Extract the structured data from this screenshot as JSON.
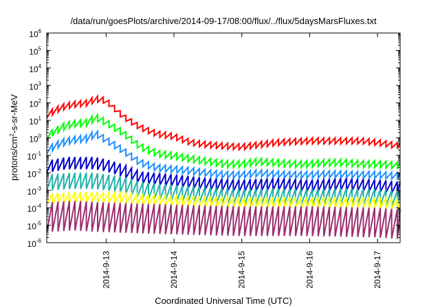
{
  "chart_data": {
    "type": "line",
    "title": "/data/run/goesPlots/archive/2014-09-17/08:00/flux/../flux/5daysMarsFluxes.txt",
    "xlabel": "Coordinated Universal Time (UTC)",
    "ylabel_base": "protons/cm",
    "ylabel_sup": "2",
    "ylabel_rest": "-s-sr-MeV",
    "y_scale": "log",
    "ylim": [
      1e-06,
      1000000.0
    ],
    "y_ticks": [
      {
        "base": "10",
        "exp": "-6",
        "value": 1e-06
      },
      {
        "base": "10",
        "exp": "-5",
        "value": 1e-05
      },
      {
        "base": "10",
        "exp": "-4",
        "value": 0.0001
      },
      {
        "base": "10",
        "exp": "-3",
        "value": 0.001
      },
      {
        "base": "10",
        "exp": "-2",
        "value": 0.01
      },
      {
        "base": "10",
        "exp": "-1",
        "value": 0.1
      },
      {
        "base": "10",
        "exp": "0",
        "value": 1
      },
      {
        "base": "10",
        "exp": "1",
        "value": 10
      },
      {
        "base": "10",
        "exp": "2",
        "value": 100
      },
      {
        "base": "10",
        "exp": "3",
        "value": 1000
      },
      {
        "base": "10",
        "exp": "4",
        "value": 10000
      },
      {
        "base": "10",
        "exp": "5",
        "value": 100000
      },
      {
        "base": "10",
        "exp": "6",
        "value": 1000000
      }
    ],
    "xlim": [
      "2014-09-12T03:00",
      "2014-09-17T08:00"
    ],
    "x_ticks": [
      {
        "label": "2014-9-13",
        "value": "2014-09-13T00:00"
      },
      {
        "label": "2014-9-14",
        "value": "2014-09-14T00:00"
      },
      {
        "label": "2014-9-15",
        "value": "2014-09-15T00:00"
      },
      {
        "label": "2014-9-16",
        "value": "2014-09-16T00:00"
      },
      {
        "label": "2014-9-17",
        "value": "2014-09-17T00:00"
      }
    ],
    "grid": false,
    "legend": "none",
    "sawtooth_period_hours": 2,
    "series": [
      {
        "color": "#ff0000",
        "envelope": [
          [
            "2014-09-12T03:00",
            30
          ],
          [
            "2014-09-12T08:00",
            80
          ],
          [
            "2014-09-12T12:00",
            120
          ],
          [
            "2014-09-12T18:00",
            150
          ],
          [
            "2014-09-12T20:00",
            260
          ],
          [
            "2014-09-13T00:00",
            200
          ],
          [
            "2014-09-13T06:00",
            25
          ],
          [
            "2014-09-13T12:00",
            6
          ],
          [
            "2014-09-13T18:00",
            2.5
          ],
          [
            "2014-09-14T00:00",
            1.8
          ],
          [
            "2014-09-14T06:00",
            0.8
          ],
          [
            "2014-09-14T12:00",
            0.6
          ],
          [
            "2014-09-14T18:00",
            0.5
          ],
          [
            "2014-09-15T00:00",
            0.45
          ],
          [
            "2014-09-15T06:00",
            0.6
          ],
          [
            "2014-09-15T12:00",
            0.8
          ],
          [
            "2014-09-15T18:00",
            0.9
          ],
          [
            "2014-09-16T00:00",
            1.0
          ],
          [
            "2014-09-16T06:00",
            1.0
          ],
          [
            "2014-09-16T12:00",
            1.0
          ],
          [
            "2014-09-16T18:00",
            1.0
          ],
          [
            "2014-09-17T00:00",
            0.8
          ],
          [
            "2014-09-17T08:00",
            0.5
          ]
        ],
        "drop": 0.45
      },
      {
        "color": "#00ff00",
        "envelope": [
          [
            "2014-09-12T03:00",
            2.0
          ],
          [
            "2014-09-12T08:00",
            6.0
          ],
          [
            "2014-09-12T12:00",
            10
          ],
          [
            "2014-09-12T18:00",
            12
          ],
          [
            "2014-09-12T20:00",
            25
          ],
          [
            "2014-09-13T00:00",
            12
          ],
          [
            "2014-09-13T06:00",
            3.0
          ],
          [
            "2014-09-13T12:00",
            0.5
          ],
          [
            "2014-09-13T18:00",
            0.2
          ],
          [
            "2014-09-14T00:00",
            0.15
          ],
          [
            "2014-09-14T06:00",
            0.1
          ],
          [
            "2014-09-14T12:00",
            0.07
          ],
          [
            "2014-09-14T18:00",
            0.05
          ],
          [
            "2014-09-15T00:00",
            0.05
          ],
          [
            "2014-09-15T06:00",
            0.07
          ],
          [
            "2014-09-15T12:00",
            0.06
          ],
          [
            "2014-09-15T18:00",
            0.05
          ],
          [
            "2014-09-16T00:00",
            0.05
          ],
          [
            "2014-09-16T06:00",
            0.06
          ],
          [
            "2014-09-16T12:00",
            0.06
          ],
          [
            "2014-09-16T18:00",
            0.05
          ],
          [
            "2014-09-17T00:00",
            0.05
          ],
          [
            "2014-09-17T08:00",
            0.04
          ]
        ],
        "drop": 0.4
      },
      {
        "color": "#1e90ff",
        "envelope": [
          [
            "2014-09-12T03:00",
            0.3
          ],
          [
            "2014-09-12T08:00",
            0.8
          ],
          [
            "2014-09-12T12:00",
            1.2
          ],
          [
            "2014-09-12T18:00",
            1.5
          ],
          [
            "2014-09-12T20:00",
            3.0
          ],
          [
            "2014-09-13T00:00",
            1.2
          ],
          [
            "2014-09-13T06:00",
            0.3
          ],
          [
            "2014-09-13T12:00",
            0.06
          ],
          [
            "2014-09-13T18:00",
            0.03
          ],
          [
            "2014-09-14T00:00",
            0.025
          ],
          [
            "2014-09-14T06:00",
            0.02
          ],
          [
            "2014-09-14T12:00",
            0.015
          ],
          [
            "2014-09-14T18:00",
            0.012
          ],
          [
            "2014-09-15T00:00",
            0.012
          ],
          [
            "2014-09-15T06:00",
            0.015
          ],
          [
            "2014-09-15T12:00",
            0.013
          ],
          [
            "2014-09-15T18:00",
            0.012
          ],
          [
            "2014-09-16T00:00",
            0.012
          ],
          [
            "2014-09-16T06:00",
            0.013
          ],
          [
            "2014-09-16T12:00",
            0.013
          ],
          [
            "2014-09-16T18:00",
            0.012
          ],
          [
            "2014-09-17T00:00",
            0.012
          ],
          [
            "2014-09-17T08:00",
            0.01
          ]
        ],
        "drop": 0.4
      },
      {
        "color": "#0000cd",
        "envelope": [
          [
            "2014-09-12T03:00",
            0.05
          ],
          [
            "2014-09-12T10:00",
            0.08
          ],
          [
            "2014-09-12T20:00",
            0.08
          ],
          [
            "2014-09-13T00:00",
            0.06
          ],
          [
            "2014-09-13T06:00",
            0.03
          ],
          [
            "2014-09-13T12:00",
            0.012
          ],
          [
            "2014-09-14T00:00",
            0.008
          ],
          [
            "2014-09-14T12:00",
            0.005
          ],
          [
            "2014-09-15T00:00",
            0.004
          ],
          [
            "2014-09-15T12:00",
            0.005
          ],
          [
            "2014-09-16T00:00",
            0.004
          ],
          [
            "2014-09-16T12:00",
            0.005
          ],
          [
            "2014-09-17T00:00",
            0.004
          ],
          [
            "2014-09-17T08:00",
            0.003
          ]
        ],
        "drop": 0.2
      },
      {
        "color": "#20b2aa",
        "envelope": [
          [
            "2014-09-12T03:00",
            0.008
          ],
          [
            "2014-09-12T12:00",
            0.01
          ],
          [
            "2014-09-12T20:00",
            0.01
          ],
          [
            "2014-09-13T06:00",
            0.006
          ],
          [
            "2014-09-13T12:00",
            0.003
          ],
          [
            "2014-09-14T00:00",
            0.002
          ],
          [
            "2014-09-14T12:00",
            0.0015
          ],
          [
            "2014-09-15T00:00",
            0.0012
          ],
          [
            "2014-09-15T12:00",
            0.0013
          ],
          [
            "2014-09-16T00:00",
            0.0012
          ],
          [
            "2014-09-16T12:00",
            0.0013
          ],
          [
            "2014-09-17T00:00",
            0.0012
          ],
          [
            "2014-09-17T08:00",
            0.0009
          ]
        ],
        "drop": 0.12
      },
      {
        "color": "#ffff00",
        "envelope": [
          [
            "2014-09-12T03:00",
            0.0006
          ],
          [
            "2014-09-12T12:00",
            0.0008
          ],
          [
            "2014-09-13T00:00",
            0.0008
          ],
          [
            "2014-09-13T12:00",
            0.0006
          ],
          [
            "2014-09-14T00:00",
            0.0005
          ],
          [
            "2014-09-15T00:00",
            0.0004
          ],
          [
            "2014-09-16T00:00",
            0.0004
          ],
          [
            "2014-09-17T00:00",
            0.0004
          ],
          [
            "2014-09-17T08:00",
            0.0003
          ]
        ],
        "drop": 0.25
      },
      {
        "color": "#9b2d6e",
        "envelope": [
          [
            "2014-09-12T03:00",
            0.0002
          ],
          [
            "2014-09-12T12:00",
            0.00025
          ],
          [
            "2014-09-13T00:00",
            0.0002
          ],
          [
            "2014-09-14T00:00",
            0.00015
          ],
          [
            "2014-09-15T00:00",
            0.00012
          ],
          [
            "2014-09-16T00:00",
            0.00012
          ],
          [
            "2014-09-17T00:00",
            0.0001
          ],
          [
            "2014-09-17T08:00",
            8e-05
          ]
        ],
        "drop": 0.02
      }
    ]
  }
}
